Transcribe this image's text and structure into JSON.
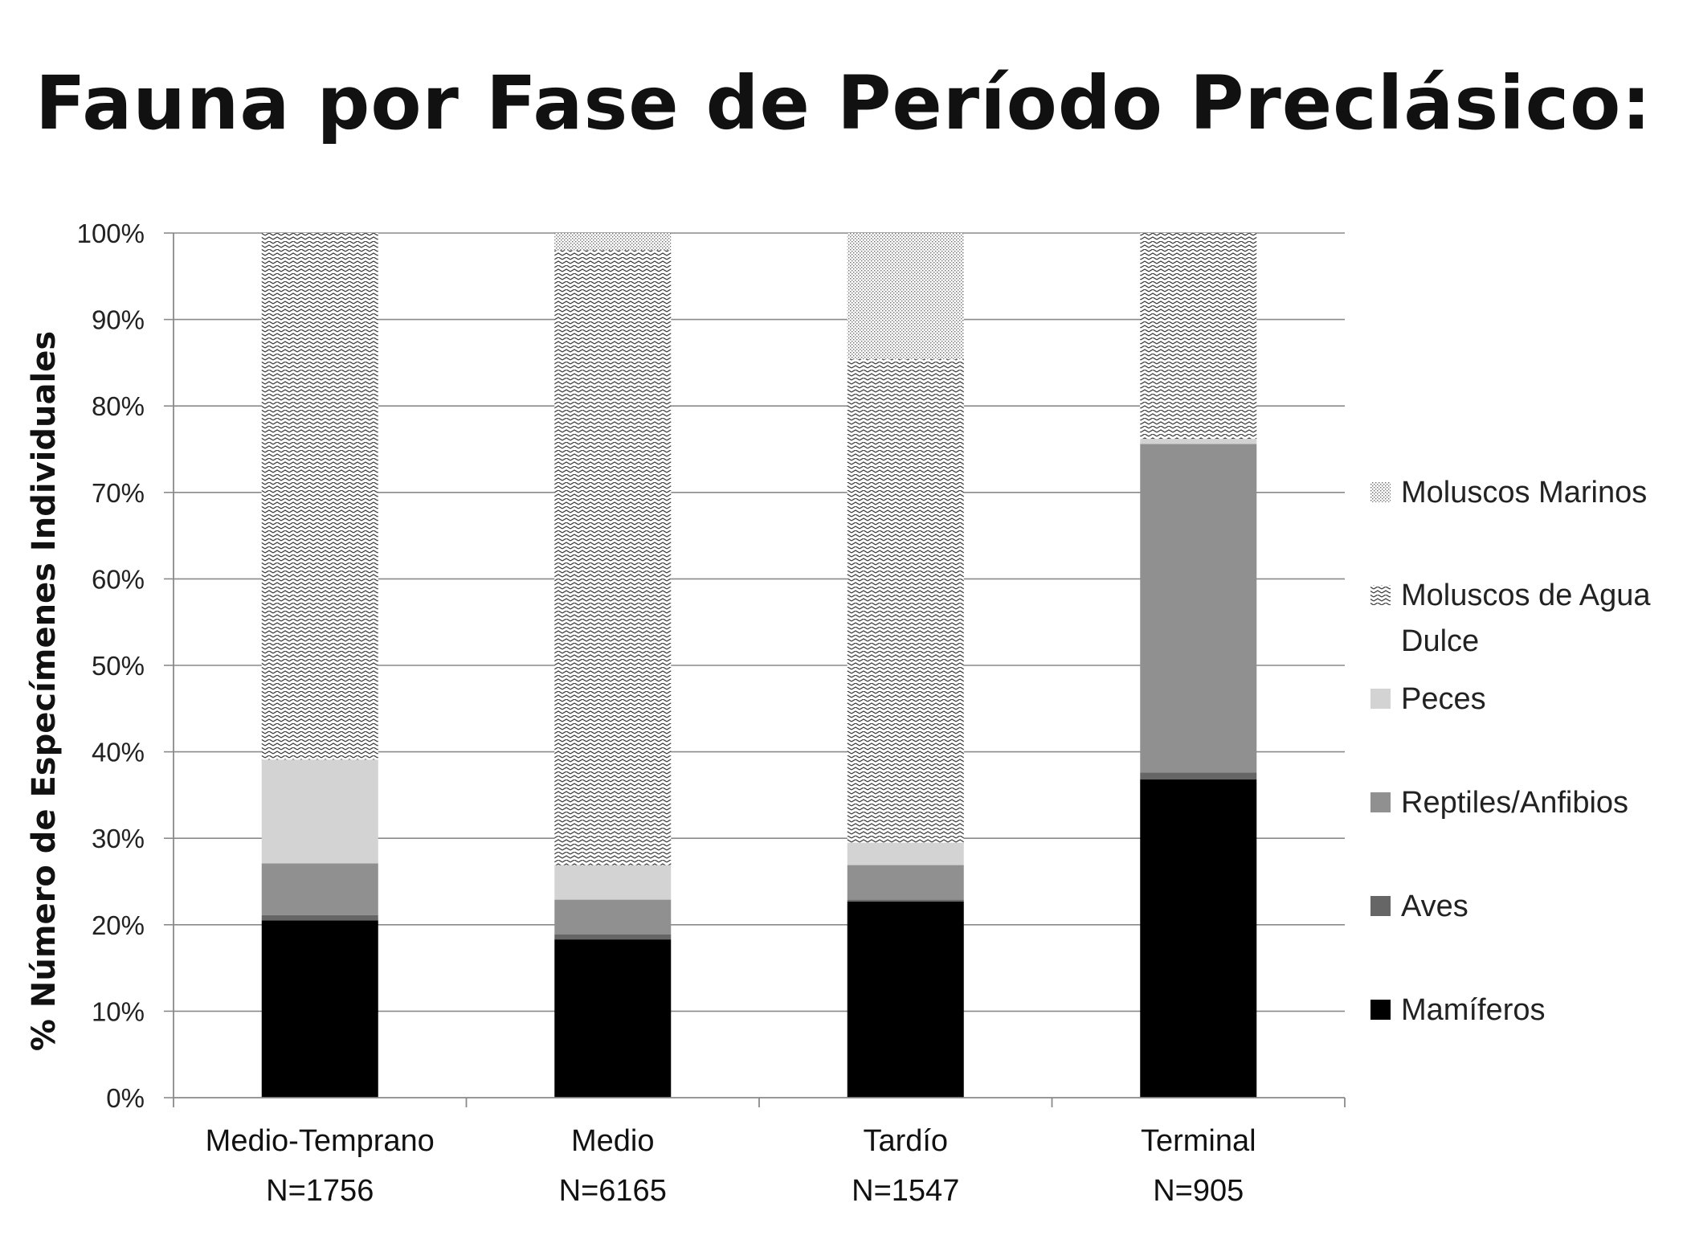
{
  "chart_data": {
    "type": "bar",
    "stacked": true,
    "title": "Fauna por Fase de Período Preclásico:",
    "ylabel": "% Número de Especímenes Individuales",
    "xlabel": "",
    "ylim": [
      0,
      100
    ],
    "yticks": [
      "0%",
      "10%",
      "20%",
      "30%",
      "40%",
      "50%",
      "60%",
      "70%",
      "80%",
      "90%",
      "100%"
    ],
    "grid": true,
    "legend_position": "right",
    "categories": [
      "Medio-Temprano",
      "Medio",
      "Tardío",
      "Terminal"
    ],
    "category_counts": [
      "N=1756",
      "N=6165",
      "N=1547",
      "N=905"
    ],
    "series": [
      {
        "name": "Mamíferos",
        "values": [
          20.5,
          18.3,
          22.7,
          36.8
        ],
        "color": "#000000",
        "pattern": "solid"
      },
      {
        "name": "Aves",
        "values": [
          0.6,
          0.6,
          0.2,
          0.8
        ],
        "color": "#666666",
        "pattern": "solid"
      },
      {
        "name": "Reptiles/Anfibios",
        "values": [
          6.0,
          4.0,
          4.0,
          38.0
        ],
        "color": "#909090",
        "pattern": "solid"
      },
      {
        "name": "Peces",
        "values": [
          12.0,
          4.0,
          2.6,
          0.6
        ],
        "color": "#d3d3d3",
        "pattern": "solid"
      },
      {
        "name": "Moluscos de Agua Dulce",
        "values": [
          60.9,
          71.1,
          55.9,
          23.8
        ],
        "color": "#444444",
        "pattern": "zigzag"
      },
      {
        "name": "Moluscos Marinos",
        "values": [
          0.0,
          2.0,
          14.6,
          0.0
        ],
        "color": "#888888",
        "pattern": "dots"
      }
    ],
    "legend": [
      {
        "label_lines": [
          "Moluscos Marinos"
        ],
        "series": "Moluscos Marinos"
      },
      {
        "label_lines": [
          "Moluscos de Agua",
          "Dulce"
        ],
        "series": "Moluscos de Agua Dulce"
      },
      {
        "label_lines": [
          "Peces"
        ],
        "series": "Peces"
      },
      {
        "label_lines": [
          "Reptiles/Anfibios"
        ],
        "series": "Reptiles/Anfibios"
      },
      {
        "label_lines": [
          "Aves"
        ],
        "series": "Aves"
      },
      {
        "label_lines": [
          "Mamíferos"
        ],
        "series": "Mamíferos"
      }
    ]
  }
}
